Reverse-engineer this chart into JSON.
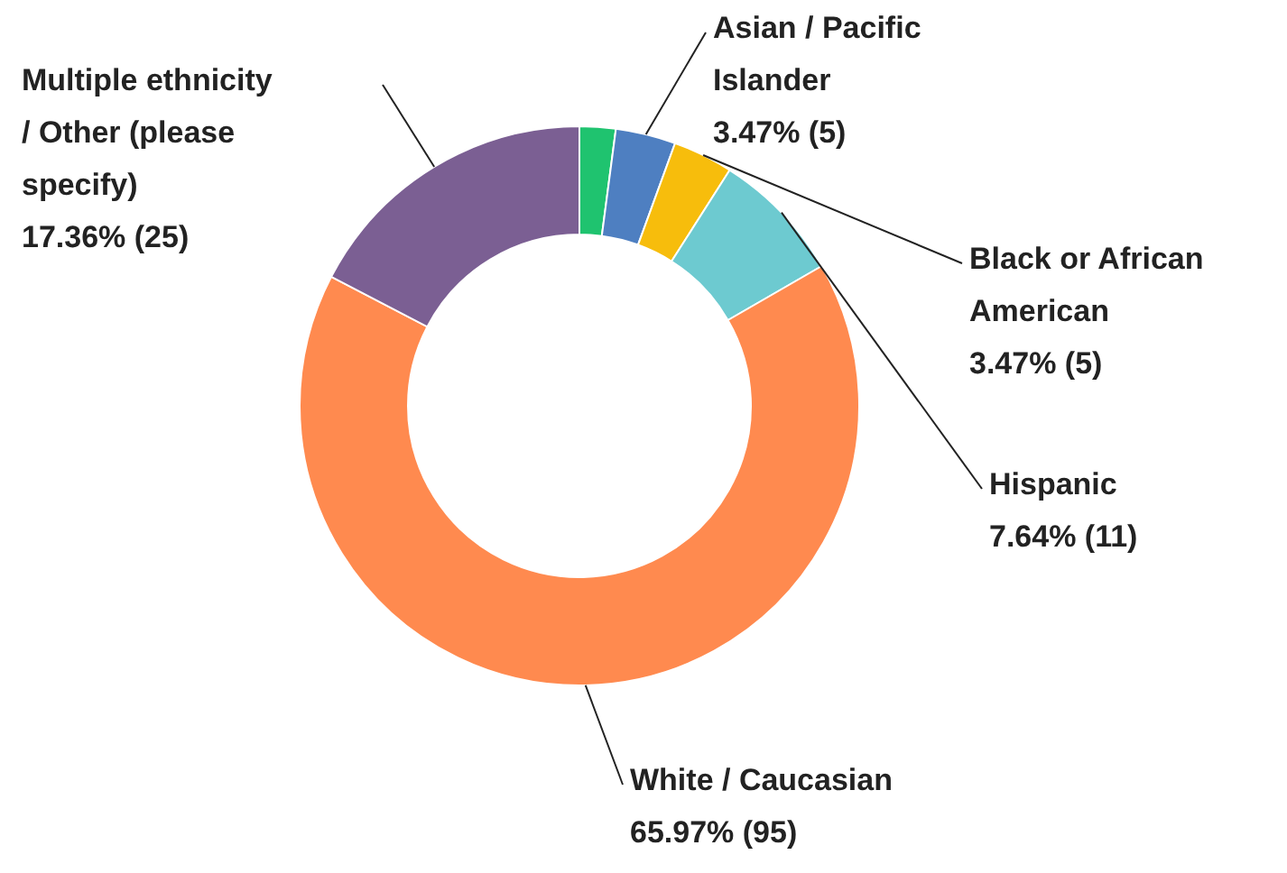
{
  "chart_data": {
    "type": "donut",
    "categories": [
      null,
      "Asian / Pacific Islander",
      "Black or African American",
      "Hispanic",
      "White / Caucasian",
      "Multiple ethnicity / Other (please specify)"
    ],
    "values": [
      3,
      5,
      5,
      11,
      95,
      25
    ],
    "colors": [
      "#1fc36f",
      "#4e7fc1",
      "#f7bd0c",
      "#6dcad0",
      "#ff8a4f",
      "#7b5f93"
    ],
    "value_labels": [
      null,
      "3.47% (5)",
      "3.47% (5)",
      "7.64% (11)",
      "65.97% (95)",
      "17.36% (25)"
    ]
  }
}
